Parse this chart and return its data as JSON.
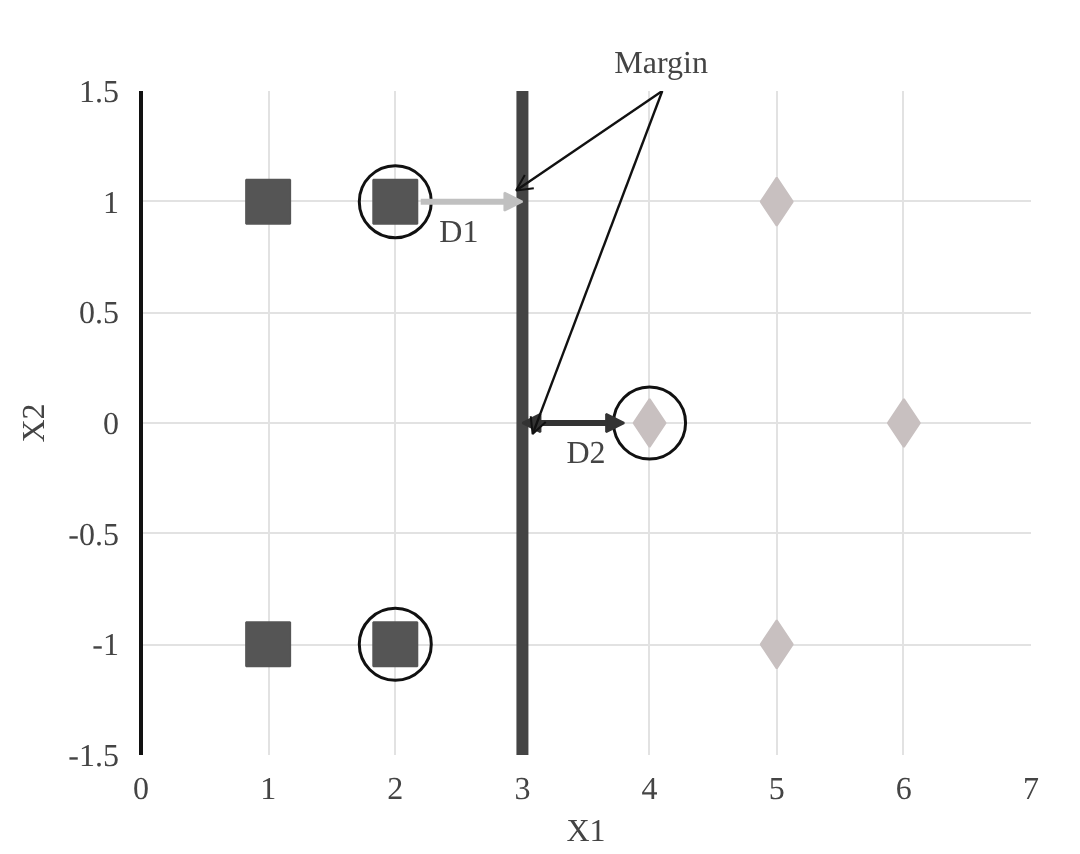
{
  "chart_data": {
    "type": "scatter",
    "xlabel": "X1",
    "ylabel": "X2",
    "xlim": [
      0,
      7
    ],
    "ylim": [
      -1.5,
      1.5
    ],
    "xticks": [
      0,
      1,
      2,
      3,
      4,
      5,
      6,
      7
    ],
    "yticks": [
      -1.5,
      -1,
      -0.5,
      0,
      0.5,
      1,
      1.5
    ],
    "grid": true,
    "series": [
      {
        "color": "#555555",
        "marker": "square",
        "x": [
          1,
          2,
          1,
          2
        ],
        "values": [
          1,
          1,
          -1,
          -1
        ]
      },
      {
        "color": "#c8c0c0",
        "marker": "diamond",
        "x": [
          4,
          5,
          5,
          6
        ],
        "values": [
          0,
          1,
          -1,
          0
        ]
      },
      {
        "color": "#111111",
        "marker": "circle",
        "x": [
          2,
          4,
          2
        ],
        "values": [
          1,
          0,
          -1
        ]
      }
    ],
    "ref_lines": [
      {
        "axis": "x",
        "value": 3,
        "color": "#444444"
      }
    ],
    "annotations": [
      {
        "text": "Margin",
        "x": 3,
        "y": 1
      },
      "D1",
      "D2"
    ]
  }
}
